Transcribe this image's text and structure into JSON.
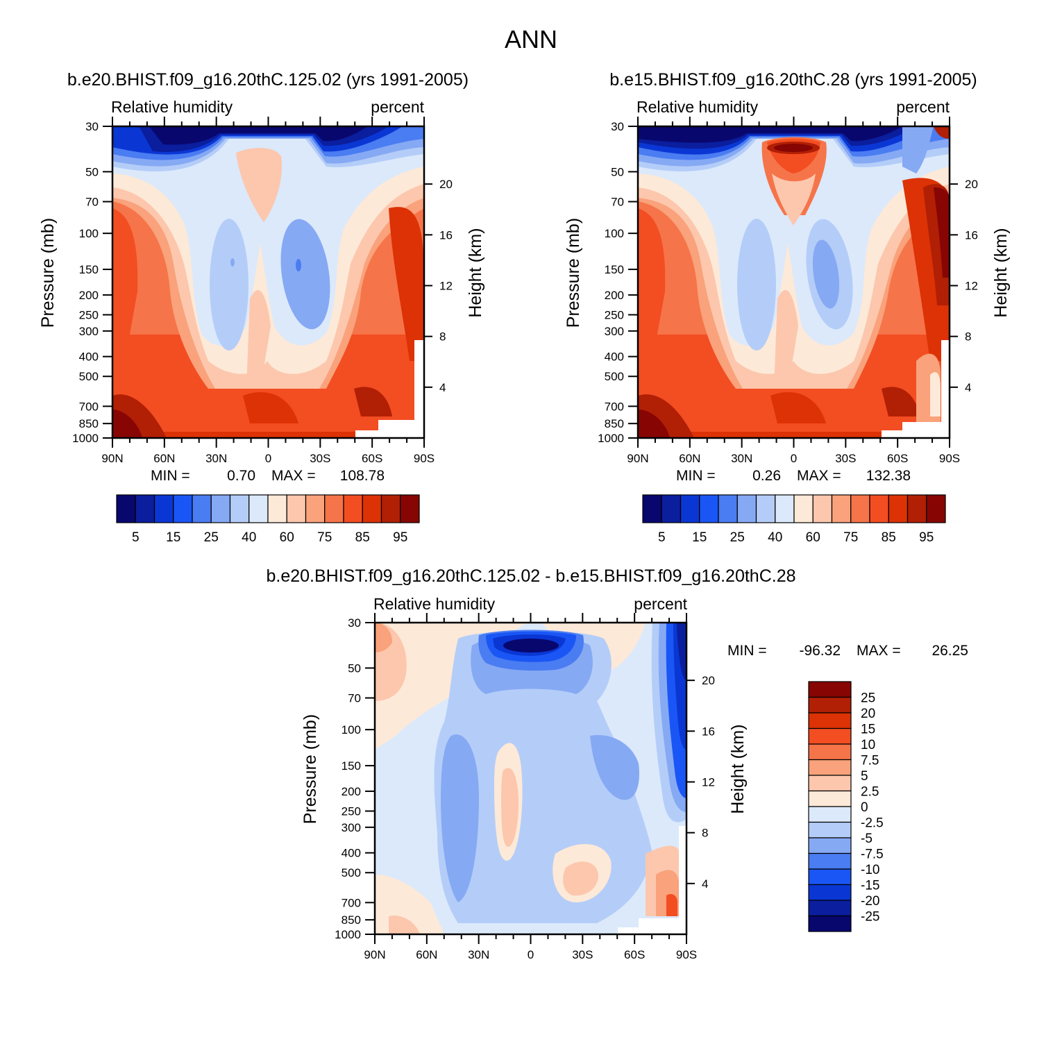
{
  "figure_title": "ANN",
  "colors": {
    "rh_palette": [
      "#08076e",
      "#0a1e9e",
      "#0a37d4",
      "#1a56f5",
      "#4a7cf2",
      "#86a9f4",
      "#b4cdf8",
      "#dbe9fb",
      "#fde9d8",
      "#fcc7ad",
      "#f9a27b",
      "#f67449",
      "#f34d22",
      "#dc3205",
      "#b11f05",
      "#870503"
    ],
    "diff_palette": [
      "#08076e",
      "#0a1e9e",
      "#0a37d4",
      "#1a56f5",
      "#4a7cf2",
      "#86a9f4",
      "#b4cdf8",
      "#dbe9fb",
      "#fde9d8",
      "#fcc7ad",
      "#f9a27b",
      "#f67449",
      "#f34d22",
      "#dc3205",
      "#b11f05",
      "#870503"
    ]
  },
  "chart_data": [
    {
      "type": "heatmap",
      "id": "p1",
      "title": "b.e20.BHIST.f09_g16.20thC.125.02 (yrs 1991-2005)",
      "left_label": "Relative humidity",
      "right_label": "percent",
      "xlabel": "",
      "ylabel": "Pressure (mb)",
      "y2label": "Height (km)",
      "x_ticks": [
        "90N",
        "60N",
        "30N",
        "0",
        "30S",
        "60S",
        "90S"
      ],
      "x_range": [
        90,
        -90
      ],
      "y_ticks": [
        "30",
        "50",
        "70",
        "100",
        "150",
        "200",
        "250",
        "300",
        "400",
        "500",
        "700",
        "850",
        "1000"
      ],
      "y_tick_values": [
        30,
        50,
        70,
        100,
        150,
        200,
        250,
        300,
        400,
        500,
        700,
        850,
        1000
      ],
      "y_range": [
        1000,
        30
      ],
      "y_scale": "log",
      "y2_ticks": [
        "20",
        "16",
        "12",
        "8",
        "4"
      ],
      "y2_tick_values": [
        20,
        16,
        12,
        8,
        4
      ],
      "min_label": "MIN =",
      "min_value": "0.70",
      "max_label": "MAX =",
      "max_value": "108.78",
      "colorbar_orientation": "horizontal",
      "colorbar_levels": [
        5,
        10,
        15,
        20,
        25,
        30,
        40,
        50,
        60,
        70,
        75,
        80,
        85,
        90,
        95
      ],
      "colorbar_labels": [
        "5",
        "15",
        "25",
        "40",
        "60",
        "75",
        "85",
        "95"
      ]
    },
    {
      "type": "heatmap",
      "id": "p2",
      "title": "b.e15.BHIST.f09_g16.20thC.28 (yrs 1991-2005)",
      "left_label": "Relative humidity",
      "right_label": "percent",
      "xlabel": "",
      "ylabel": "Pressure (mb)",
      "y2label": "Height (km)",
      "x_ticks": [
        "90N",
        "60N",
        "30N",
        "0",
        "30S",
        "60S",
        "90S"
      ],
      "x_range": [
        90,
        -90
      ],
      "y_ticks": [
        "30",
        "50",
        "70",
        "100",
        "150",
        "200",
        "250",
        "300",
        "400",
        "500",
        "700",
        "850",
        "1000"
      ],
      "y_tick_values": [
        30,
        50,
        70,
        100,
        150,
        200,
        250,
        300,
        400,
        500,
        700,
        850,
        1000
      ],
      "y_range": [
        1000,
        30
      ],
      "y_scale": "log",
      "y2_ticks": [
        "20",
        "16",
        "12",
        "8",
        "4"
      ],
      "y2_tick_values": [
        20,
        16,
        12,
        8,
        4
      ],
      "min_label": "MIN =",
      "min_value": "0.26",
      "max_label": "MAX =",
      "max_value": "132.38",
      "colorbar_orientation": "horizontal",
      "colorbar_levels": [
        5,
        10,
        15,
        20,
        25,
        30,
        40,
        50,
        60,
        70,
        75,
        80,
        85,
        90,
        95
      ],
      "colorbar_labels": [
        "5",
        "15",
        "25",
        "40",
        "60",
        "75",
        "85",
        "95"
      ]
    },
    {
      "type": "heatmap",
      "id": "p3",
      "title": "b.e20.BHIST.f09_g16.20thC.125.02 - b.e15.BHIST.f09_g16.20thC.28",
      "left_label": "Relative humidity",
      "right_label": "percent",
      "xlabel": "",
      "ylabel": "Pressure (mb)",
      "y2label": "Height (km)",
      "x_ticks": [
        "90N",
        "60N",
        "30N",
        "0",
        "30S",
        "60S",
        "90S"
      ],
      "x_range": [
        90,
        -90
      ],
      "y_ticks": [
        "30",
        "50",
        "70",
        "100",
        "150",
        "200",
        "250",
        "300",
        "400",
        "500",
        "700",
        "850",
        "1000"
      ],
      "y_tick_values": [
        30,
        50,
        70,
        100,
        150,
        200,
        250,
        300,
        400,
        500,
        700,
        850,
        1000
      ],
      "y_range": [
        1000,
        30
      ],
      "y_scale": "log",
      "y2_ticks": [
        "20",
        "16",
        "12",
        "8",
        "4"
      ],
      "y2_tick_values": [
        20,
        16,
        12,
        8,
        4
      ],
      "min_label": "MIN =",
      "min_value": "-96.32",
      "max_label": "MAX =",
      "max_value": "26.25",
      "colorbar_orientation": "vertical",
      "colorbar_levels": [
        -25,
        -20,
        -15,
        -10,
        -7.5,
        -5,
        -2.5,
        0,
        2.5,
        5,
        7.5,
        10,
        15,
        20,
        25
      ],
      "colorbar_labels": [
        "25",
        "20",
        "15",
        "10",
        "7.5",
        "5",
        "2.5",
        "0",
        "-2.5",
        "-5",
        "-7.5",
        "-10",
        "-15",
        "-20",
        "-25"
      ]
    }
  ]
}
